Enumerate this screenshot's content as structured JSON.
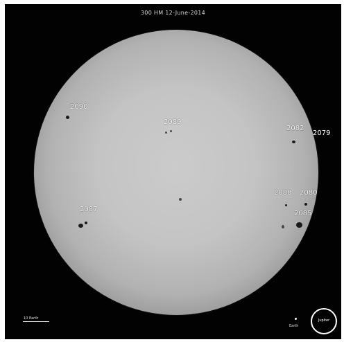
{
  "title": "300 HM  12-June-2014",
  "regions": [
    "2090",
    "2089",
    "2082",
    "2079",
    "2087",
    "2088",
    "2080",
    "2085"
  ],
  "scale": {
    "label": "10 Earth"
  },
  "earth": {
    "label": "Earth"
  },
  "jupiter": {
    "label": "Jupiter"
  },
  "colors": {
    "background": "#020202",
    "sun": "#c4c4c4",
    "spot": "#1a1a1a"
  }
}
